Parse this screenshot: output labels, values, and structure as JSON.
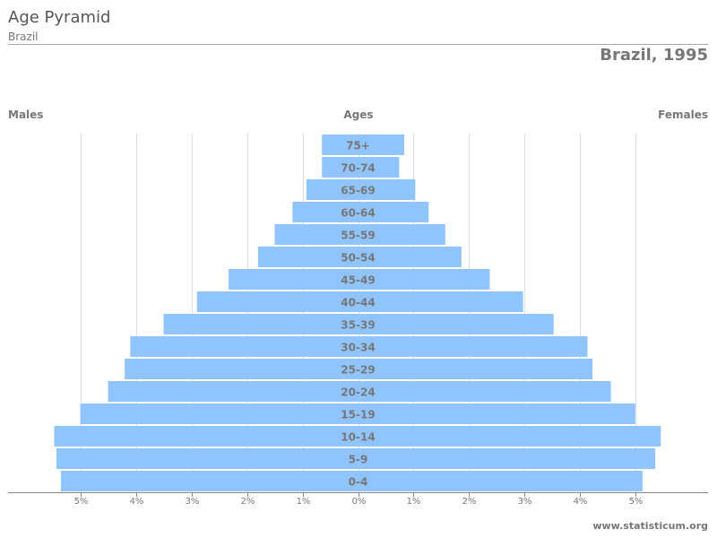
{
  "header": {
    "title": "Age Pyramid",
    "subtitle": "Brazil",
    "chart_title": "Brazil, 1995"
  },
  "columns": {
    "males": "Males",
    "ages": "Ages",
    "females": "Females"
  },
  "footer": {
    "site": "www.statisticum.org"
  },
  "colors": {
    "bar": "#90c4ff",
    "grid": "#dddddd",
    "axis": "#888888",
    "label": "#777777"
  },
  "chart_data": {
    "type": "bar",
    "orientation": "horizontal",
    "title": "Brazil, 1995",
    "categories": [
      "75+",
      "70-74",
      "65-69",
      "60-64",
      "55-59",
      "50-54",
      "45-49",
      "40-44",
      "35-39",
      "30-34",
      "25-29",
      "20-24",
      "15-19",
      "10-14",
      "5-9",
      "0-4"
    ],
    "series": [
      {
        "name": "Males",
        "values": [
          0.65,
          0.65,
          0.93,
          1.18,
          1.5,
          1.8,
          2.33,
          2.9,
          3.5,
          4.1,
          4.2,
          4.5,
          5.0,
          5.47,
          5.43,
          5.35
        ]
      },
      {
        "name": "Females",
        "values": [
          0.83,
          0.74,
          1.03,
          1.27,
          1.57,
          1.86,
          2.37,
          2.97,
          3.52,
          4.13,
          4.22,
          4.55,
          4.99,
          5.45,
          5.35,
          5.12
        ]
      }
    ],
    "xlim": [
      -6.3,
      6.3
    ],
    "x_ticks": [
      -5,
      -4,
      -3,
      -2,
      -1,
      0,
      1,
      2,
      3,
      4,
      5
    ],
    "x_tick_labels": [
      "5%",
      "4%",
      "3%",
      "2%",
      "1%",
      "0%",
      "1%",
      "2%",
      "3%",
      "4%",
      "5%"
    ],
    "grid": true,
    "legend": "none"
  }
}
